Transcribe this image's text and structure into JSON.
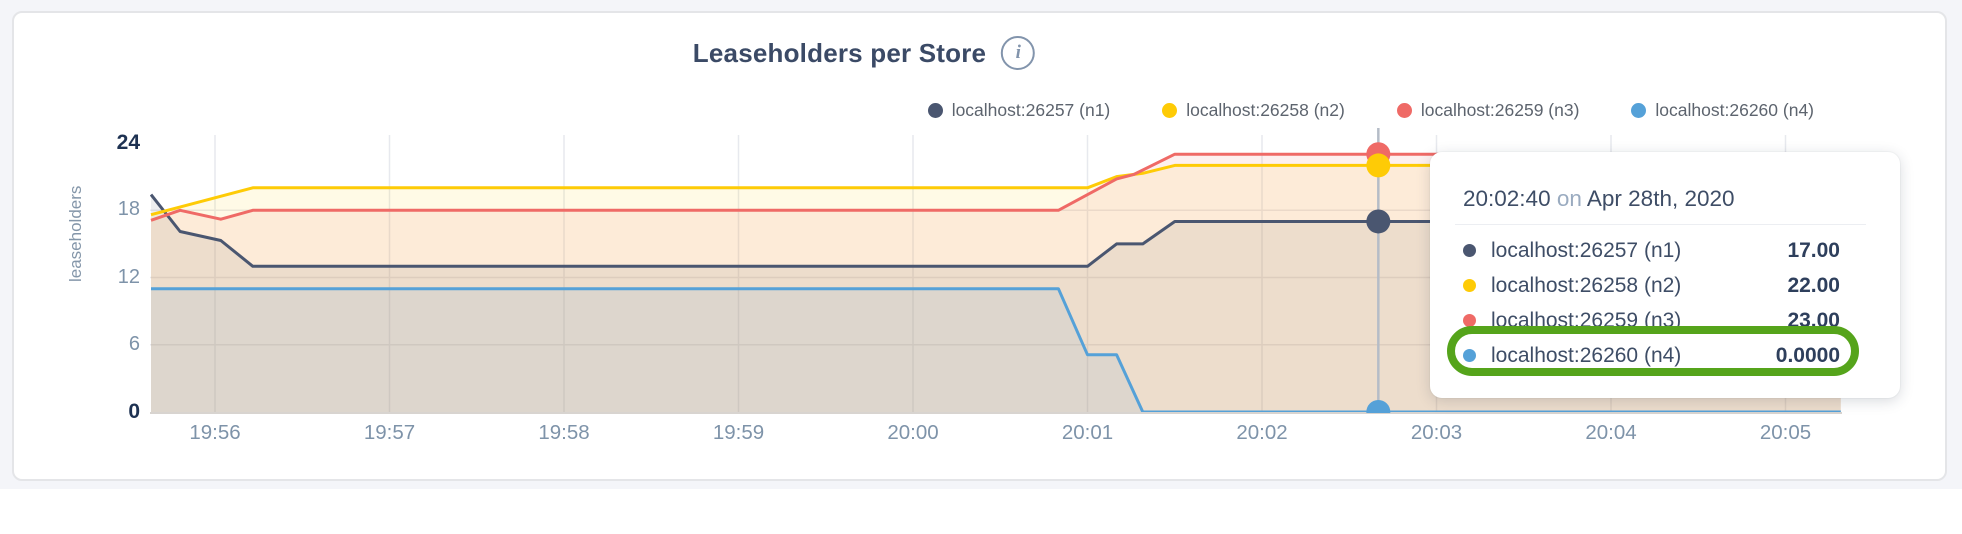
{
  "header": {
    "title": "Leaseholders per Store",
    "info_icon": "i"
  },
  "colors": {
    "n1": "#4a5670",
    "n2": "#fecb06",
    "n3": "#ef6a66",
    "n4": "#55a1d8",
    "highlight_green": "#55a41b",
    "grid": "#e7e9ee",
    "baseline": "#d8d4d0",
    "hover_line": "#b5bcc7"
  },
  "chart_data": {
    "type": "area",
    "title": "Leaseholders per Store",
    "ylabel": "leaseholders",
    "ylim": [
      0,
      24
    ],
    "grid_y": [
      6,
      12,
      18
    ],
    "y_ticks": [
      {
        "label": "24",
        "value": 24,
        "bold": true
      },
      {
        "label": "18",
        "value": 18,
        "bold": false
      },
      {
        "label": "12",
        "value": 12,
        "bold": false
      },
      {
        "label": "6",
        "value": 6,
        "bold": false
      },
      {
        "label": "0",
        "value": 0,
        "bold": true
      }
    ],
    "x_ticks": [
      "19:56",
      "19:57",
      "19:58",
      "19:59",
      "20:00",
      "20:01",
      "20:02",
      "20:03",
      "20:04",
      "20:05"
    ],
    "legend_position": "top-right",
    "series": [
      {
        "name": "localhost:26257 (n1)",
        "color": "#4a5670",
        "points": [
          [
            "19:55:38",
            19.4
          ],
          [
            "19:55:48",
            16.1
          ],
          [
            "19:56:02",
            15.3
          ],
          [
            "19:56:13",
            13
          ],
          [
            "20:01:00",
            13
          ],
          [
            "20:01:10",
            15
          ],
          [
            "20:01:19",
            15
          ],
          [
            "20:01:30",
            17
          ],
          [
            "20:05:19",
            17
          ]
        ]
      },
      {
        "name": "localhost:26258 (n2)",
        "color": "#fecb06",
        "points": [
          [
            "19:55:38",
            17.6
          ],
          [
            "19:56:13",
            20
          ],
          [
            "20:01:00",
            20
          ],
          [
            "20:01:10",
            21
          ],
          [
            "20:01:19",
            21.3
          ],
          [
            "20:01:30",
            22
          ],
          [
            "20:05:19",
            22
          ]
        ]
      },
      {
        "name": "localhost:26259 (n3)",
        "color": "#ef6a66",
        "points": [
          [
            "19:55:38",
            17.1
          ],
          [
            "19:55:48",
            18
          ],
          [
            "19:56:02",
            17.2
          ],
          [
            "19:56:13",
            18
          ],
          [
            "20:00:50",
            18
          ],
          [
            "20:01:10",
            20.8
          ],
          [
            "20:01:16",
            21.2
          ],
          [
            "20:01:30",
            23
          ],
          [
            "20:05:19",
            23
          ]
        ]
      },
      {
        "name": "localhost:26260 (n4)",
        "color": "#55a1d8",
        "points": [
          [
            "19:55:38",
            11
          ],
          [
            "20:00:50",
            11
          ],
          [
            "20:01:00",
            5.1
          ],
          [
            "20:01:10",
            5.1
          ],
          [
            "20:01:19",
            0
          ],
          [
            "20:05:19",
            0
          ]
        ]
      }
    ],
    "hover": {
      "time": "20:02:40",
      "values": [
        17,
        22,
        23,
        0
      ]
    }
  },
  "tooltip": {
    "time": "20:02:40",
    "conj": "on",
    "date": "Apr 28th, 2020",
    "rows": [
      {
        "name": "localhost:26257 (n1)",
        "value": "17.00",
        "color": "#4a5670",
        "highlighted": false
      },
      {
        "name": "localhost:26258 (n2)",
        "value": "22.00",
        "color": "#fecb06",
        "highlighted": false
      },
      {
        "name": "localhost:26259 (n3)",
        "value": "23.00",
        "color": "#ef6a66",
        "highlighted": false
      },
      {
        "name": "localhost:26260 (n4)",
        "value": "0.0000",
        "color": "#55a1d8",
        "highlighted": true
      }
    ]
  }
}
